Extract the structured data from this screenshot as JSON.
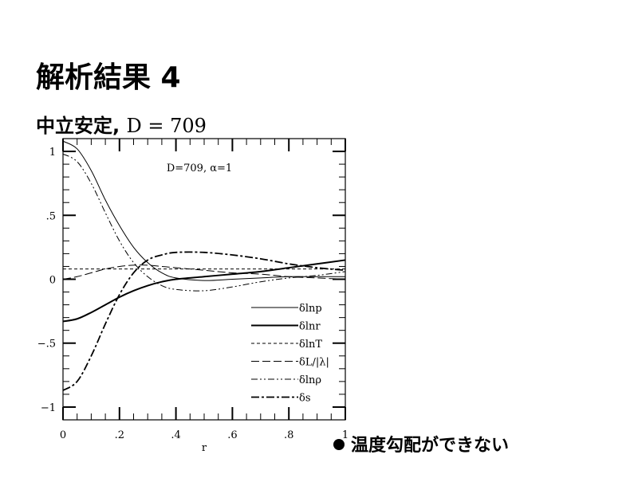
{
  "slide": {
    "title": "解析結果 4",
    "subtitle_text": "中立安定,",
    "subtitle_math": "D = 709",
    "bullet": "温度勾配ができない"
  },
  "chart_data": {
    "type": "line",
    "annotation": "D=709,  α=1",
    "xlabel": "r",
    "ylabel": "",
    "xlim": [
      0,
      1
    ],
    "ylim": [
      -1.1,
      1.1
    ],
    "xticks": [
      {
        "v": 0,
        "label": "0"
      },
      {
        "v": 0.2,
        "label": ".2"
      },
      {
        "v": 0.4,
        "label": ".4"
      },
      {
        "v": 0.6,
        "label": ".6"
      },
      {
        "v": 0.8,
        "label": ".8"
      },
      {
        "v": 1,
        "label": "1"
      }
    ],
    "yticks": [
      {
        "v": 1,
        "label": "1"
      },
      {
        "v": 0.5,
        "label": ".5"
      },
      {
        "v": 0,
        "label": "0"
      },
      {
        "v": -0.5,
        "label": "−.5"
      },
      {
        "v": -1,
        "label": "−1"
      }
    ],
    "legend_position": "bottom-right",
    "x": [
      0,
      0.05,
      0.1,
      0.15,
      0.2,
      0.25,
      0.3,
      0.35,
      0.4,
      0.5,
      0.6,
      0.7,
      0.8,
      0.9,
      1.0
    ],
    "series": [
      {
        "name": "δlnp",
        "style": "thin-solid",
        "values": [
          1.08,
          1.02,
          0.85,
          0.62,
          0.42,
          0.25,
          0.13,
          0.05,
          0.01,
          -0.01,
          0.0,
          0.01,
          0.02,
          0.02,
          0.02
        ]
      },
      {
        "name": "δlnr",
        "style": "thick-solid",
        "values": [
          -0.33,
          -0.31,
          -0.26,
          -0.2,
          -0.14,
          -0.09,
          -0.05,
          -0.02,
          0,
          0.02,
          0.04,
          0.06,
          0.09,
          0.12,
          0.15
        ]
      },
      {
        "name": "δlnT",
        "style": "short-dash",
        "values": [
          0.08,
          0.08,
          0.08,
          0.08,
          0.08,
          0.08,
          0.08,
          0.08,
          0.08,
          0.08,
          0.08,
          0.08,
          0.08,
          0.08,
          0.08
        ]
      },
      {
        "name": "δL/|λ|",
        "style": "long-dash",
        "values": [
          0,
          0.02,
          0.05,
          0.08,
          0.1,
          0.11,
          0.11,
          0.1,
          0.09,
          0.07,
          0.05,
          0.04,
          0.02,
          0.01,
          0.0
        ]
      },
      {
        "name": "δlnρ",
        "style": "dash-dot-dot",
        "values": [
          0.98,
          0.92,
          0.75,
          0.52,
          0.3,
          0.13,
          0.02,
          -0.05,
          -0.08,
          -0.09,
          -0.06,
          -0.02,
          0.01,
          0.03,
          0.06
        ]
      },
      {
        "name": "δs",
        "style": "thick-dash-dot",
        "values": [
          -0.87,
          -0.8,
          -0.6,
          -0.35,
          -0.12,
          0.05,
          0.15,
          0.19,
          0.21,
          0.21,
          0.19,
          0.16,
          0.12,
          0.09,
          0.07
        ]
      }
    ]
  }
}
